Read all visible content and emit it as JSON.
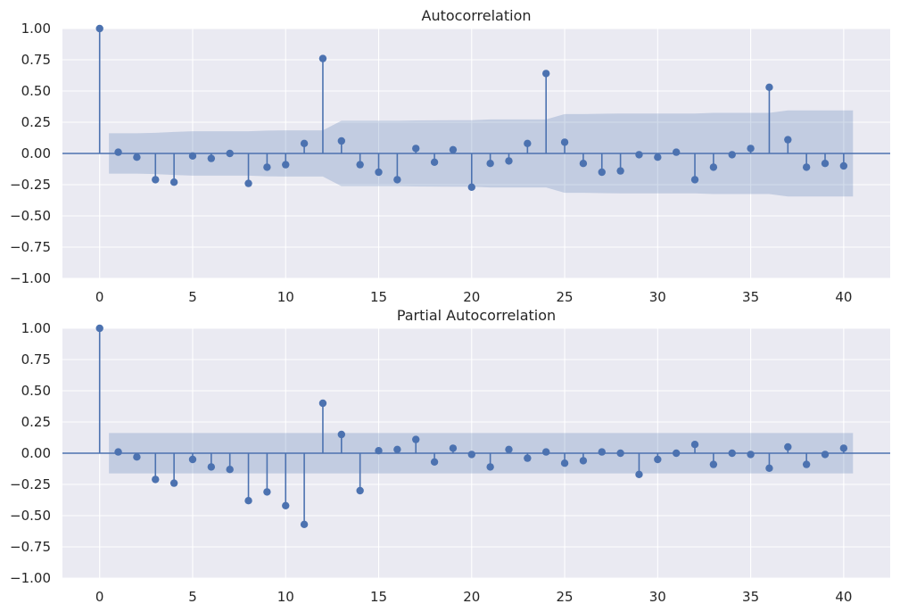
{
  "chart_data": [
    {
      "type": "stem",
      "title": "Autocorrelation",
      "xlim": [
        -2,
        42.5
      ],
      "ylim": [
        -1.0,
        1.0
      ],
      "xticks": [
        0,
        5,
        10,
        15,
        20,
        25,
        30,
        35,
        40
      ],
      "yticks": [
        -1.0,
        -0.75,
        -0.5,
        -0.25,
        0.0,
        0.25,
        0.5,
        0.75,
        1.0
      ],
      "xtick_labels": [
        "0",
        "5",
        "10",
        "15",
        "20",
        "25",
        "30",
        "35",
        "40"
      ],
      "ytick_labels": [
        "−1.00",
        "−0.75",
        "−0.50",
        "−0.25",
        "0.00",
        "0.25",
        "0.50",
        "0.75",
        "1.00"
      ],
      "grid": true,
      "lags": [
        0,
        1,
        2,
        3,
        4,
        5,
        6,
        7,
        8,
        9,
        10,
        11,
        12,
        13,
        14,
        15,
        16,
        17,
        18,
        19,
        20,
        21,
        22,
        23,
        24,
        25,
        26,
        27,
        28,
        29,
        30,
        31,
        32,
        33,
        34,
        35,
        36,
        37,
        38,
        39,
        40
      ],
      "values": [
        1.0,
        0.01,
        -0.03,
        -0.21,
        -0.23,
        -0.02,
        -0.04,
        0.0,
        -0.24,
        -0.11,
        -0.09,
        0.08,
        0.76,
        0.1,
        -0.09,
        -0.15,
        -0.21,
        0.04,
        -0.07,
        0.03,
        -0.27,
        -0.08,
        -0.06,
        0.08,
        0.64,
        0.09,
        -0.08,
        -0.15,
        -0.14,
        -0.01,
        -0.03,
        0.01,
        -0.21,
        -0.11,
        -0.01,
        0.04,
        0.53,
        0.11,
        -0.11,
        -0.08,
        -0.1
      ],
      "confidence_upper": [
        0.162,
        0.162,
        0.162,
        0.165,
        0.172,
        0.178,
        0.178,
        0.178,
        0.178,
        0.183,
        0.185,
        0.185,
        0.185,
        0.262,
        0.262,
        0.262,
        0.262,
        0.264,
        0.265,
        0.266,
        0.266,
        0.272,
        0.272,
        0.272,
        0.272,
        0.315,
        0.315,
        0.318,
        0.32,
        0.32,
        0.32,
        0.32,
        0.32,
        0.325,
        0.325,
        0.325,
        0.325,
        0.345,
        0.345,
        0.345,
        0.345
      ]
    },
    {
      "type": "stem",
      "title": "Partial Autocorrelation",
      "xlim": [
        -2,
        42.5
      ],
      "ylim": [
        -1.0,
        1.0
      ],
      "xticks": [
        0,
        5,
        10,
        15,
        20,
        25,
        30,
        35,
        40
      ],
      "yticks": [
        -1.0,
        -0.75,
        -0.5,
        -0.25,
        0.0,
        0.25,
        0.5,
        0.75,
        1.0
      ],
      "xtick_labels": [
        "0",
        "5",
        "10",
        "15",
        "20",
        "25",
        "30",
        "35",
        "40"
      ],
      "ytick_labels": [
        "−1.00",
        "−0.75",
        "−0.50",
        "−0.25",
        "0.00",
        "0.25",
        "0.50",
        "0.75",
        "1.00"
      ],
      "grid": true,
      "lags": [
        0,
        1,
        2,
        3,
        4,
        5,
        6,
        7,
        8,
        9,
        10,
        11,
        12,
        13,
        14,
        15,
        16,
        17,
        18,
        19,
        20,
        21,
        22,
        23,
        24,
        25,
        26,
        27,
        28,
        29,
        30,
        31,
        32,
        33,
        34,
        35,
        36,
        37,
        38,
        39,
        40
      ],
      "values": [
        1.0,
        0.01,
        -0.03,
        -0.21,
        -0.24,
        -0.05,
        -0.11,
        -0.13,
        -0.38,
        -0.31,
        -0.42,
        -0.57,
        0.4,
        0.15,
        -0.3,
        0.02,
        0.03,
        0.11,
        -0.07,
        0.04,
        -0.01,
        -0.11,
        0.03,
        -0.04,
        0.01,
        -0.08,
        -0.06,
        0.01,
        0.0,
        -0.17,
        -0.05,
        0.0,
        0.07,
        -0.09,
        0.0,
        -0.01,
        -0.12,
        0.05,
        -0.09,
        -0.01,
        0.04
      ],
      "confidence_upper": [
        0.162,
        0.162,
        0.162,
        0.162,
        0.162,
        0.162,
        0.162,
        0.162,
        0.162,
        0.162,
        0.162,
        0.162,
        0.162,
        0.162,
        0.162,
        0.162,
        0.162,
        0.162,
        0.162,
        0.162,
        0.162,
        0.162,
        0.162,
        0.162,
        0.162,
        0.162,
        0.162,
        0.162,
        0.162,
        0.162,
        0.162,
        0.162,
        0.162,
        0.162,
        0.162,
        0.162,
        0.162,
        0.162,
        0.162,
        0.162,
        0.162
      ]
    }
  ],
  "colors": {
    "series": "#4c72b0",
    "axes_background": "#eaeaf2",
    "grid": "#ffffff"
  }
}
